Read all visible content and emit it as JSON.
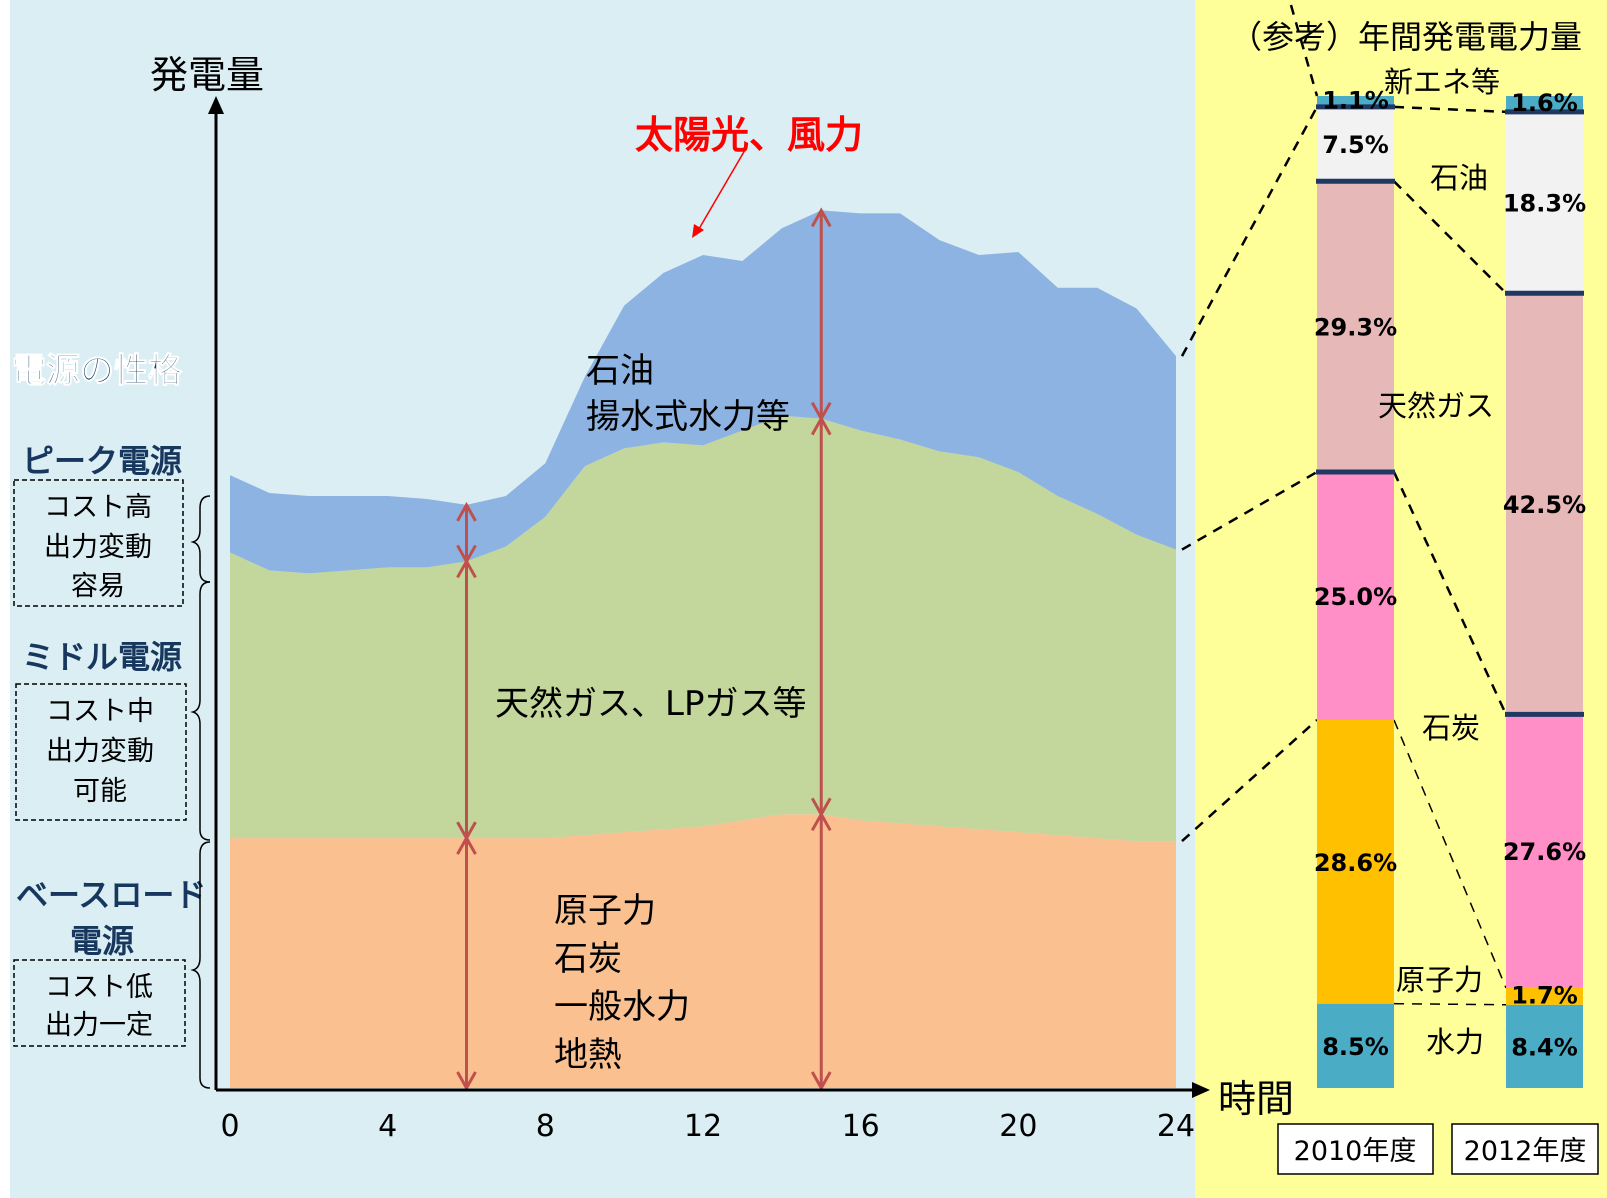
{
  "left_panel": {
    "y_axis_label": "発電量",
    "x_axis_label": "時間",
    "x_ticks": [
      "0",
      "4",
      "8",
      "12",
      "16",
      "20",
      "24"
    ],
    "renewable_label": "太陽光、風力",
    "region_labels": {
      "peak": [
        "石油",
        "揚水式水力等"
      ],
      "middle": [
        "天然ガス、LPガス等"
      ],
      "base": [
        "原子力",
        "石炭",
        "一般水力",
        "地熱"
      ]
    },
    "nature_heading": "電源の性格",
    "categories": [
      {
        "title": "ピーク電源",
        "desc": [
          "コスト高",
          "出力変動",
          "容易"
        ]
      },
      {
        "title": "ミドル電源",
        "desc": [
          "コスト中",
          "出力変動",
          "可能"
        ]
      },
      {
        "title": "ベースロード",
        "title2": "電源",
        "desc": [
          "コスト低",
          "出力一定"
        ]
      }
    ]
  },
  "right_panel": {
    "title": "（参考）年間発電電力量",
    "source_labels": {
      "new_energy": "新エネ等",
      "oil": "石油",
      "gas": "天然ガス",
      "coal": "石炭",
      "nuclear": "原子力",
      "hydro": "水力"
    },
    "year_labels": [
      "2010年度",
      "2012年度"
    ]
  },
  "colors": {
    "bg_left": "#daeef3",
    "bg_right": "#ffff99",
    "peak": "#8db3e2",
    "middle": "#c3d69b",
    "base": "#fac090",
    "total_line": "#ff0000",
    "arrow": "#c0504d",
    "new_energy": "#4bacc6",
    "oil": "#f2f2f2",
    "gas": "#e6b9b8",
    "coal": "#ff8fc6",
    "nuclear": "#ffc000",
    "hydro": "#4bacc6",
    "divider": "#1f3864"
  },
  "chart_data": [
    {
      "type": "area",
      "title": "",
      "xlabel": "時間",
      "ylabel": "発電量",
      "xlim": [
        0,
        24
      ],
      "x_ticks": [
        0,
        4,
        8,
        12,
        16,
        20,
        24
      ],
      "x": [
        0,
        1,
        2,
        3,
        4,
        5,
        6,
        7,
        8,
        9,
        10,
        11,
        12,
        13,
        14,
        15,
        16,
        17,
        18,
        19,
        20,
        21,
        22,
        23,
        24
      ],
      "series": [
        {
          "name": "原子力、石炭、一般水力、地熱",
          "values": [
            42,
            42,
            42,
            42,
            42,
            42,
            42,
            42,
            42,
            42.5,
            43,
            43.5,
            44,
            45,
            46,
            46,
            45,
            44.5,
            44,
            43.5,
            43,
            42.5,
            42,
            41.5,
            41.5
          ]
        },
        {
          "name": "天然ガス、LPガス等",
          "values": [
            48,
            45,
            44.5,
            45,
            45.5,
            45.5,
            46.5,
            49,
            54,
            62,
            64.5,
            65,
            64,
            65.5,
            67,
            66.5,
            65.5,
            64.5,
            63,
            62.5,
            60.5,
            57,
            54.5,
            51.5,
            49
          ]
        },
        {
          "name": "石油、揚水式水力等",
          "values": [
            13,
            13,
            13,
            12.5,
            12,
            11.5,
            9.5,
            8.5,
            9,
            15,
            24,
            28.5,
            32,
            28.5,
            31.5,
            35,
            36.5,
            38,
            35.5,
            34,
            37,
            35,
            38,
            38,
            32.5
          ]
        },
        {
          "name": "太陽光、風力",
          "values": [
            103,
            100,
            98.5,
            99,
            99.5,
            99,
            98.5,
            99,
            105,
            119.5,
            131.5,
            137,
            140,
            139,
            144.5,
            147.5,
            147,
            147,
            142.5,
            140,
            140.5,
            134.5,
            134.5,
            131,
            123
          ]
        }
      ]
    },
    {
      "type": "bar",
      "title": "（参考）年間発電電力量",
      "categories": [
        "2010年度",
        "2012年度"
      ],
      "stacked": true,
      "unit": "%",
      "series": [
        {
          "name": "水力",
          "values": [
            8.5,
            8.4
          ]
        },
        {
          "name": "原子力",
          "values": [
            28.6,
            1.7
          ]
        },
        {
          "name": "石炭",
          "values": [
            25.0,
            27.6
          ]
        },
        {
          "name": "天然ガス",
          "values": [
            29.3,
            42.5
          ]
        },
        {
          "name": "石油",
          "values": [
            7.5,
            18.3
          ]
        },
        {
          "name": "新エネ等",
          "values": [
            1.1,
            1.6
          ]
        }
      ]
    }
  ]
}
